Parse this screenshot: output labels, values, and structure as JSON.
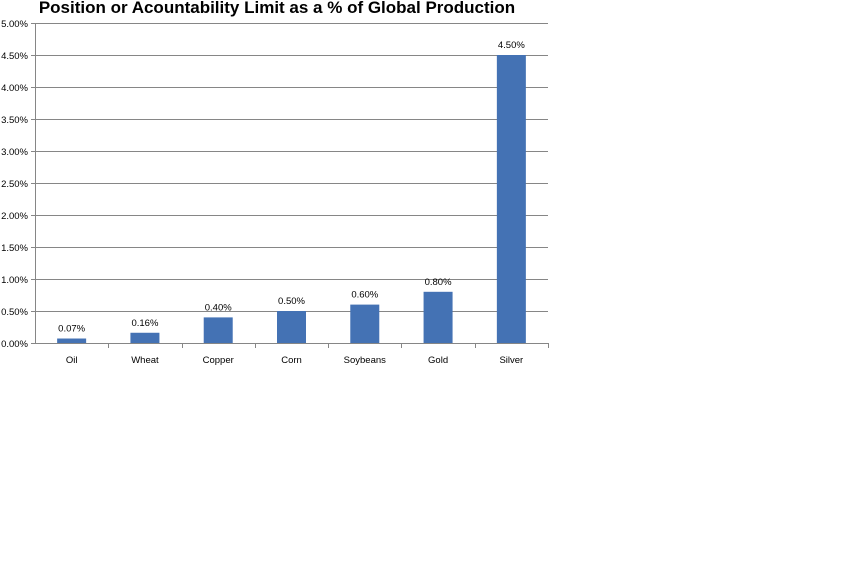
{
  "chart_data": {
    "type": "bar",
    "title": "Position or Acountability Limit as a % of Global Production",
    "xlabel": "",
    "ylabel": "",
    "categories": [
      "Oil",
      "Wheat",
      "Copper",
      "Corn",
      "Soybeans",
      "Gold",
      "Silver"
    ],
    "values": [
      0.07,
      0.16,
      0.4,
      0.5,
      0.6,
      0.8,
      4.5
    ],
    "data_labels": [
      "0.07%",
      "0.16%",
      "0.40%",
      "0.50%",
      "0.60%",
      "0.80%",
      "4.50%"
    ],
    "ylim": [
      0,
      5
    ],
    "yticks": [
      0,
      0.5,
      1.0,
      1.5,
      2.0,
      2.5,
      3.0,
      3.5,
      4.0,
      4.5,
      5.0
    ],
    "ytick_labels": [
      "0.00%",
      "0.50%",
      "1.00%",
      "1.50%",
      "2.00%",
      "2.50%",
      "3.00%",
      "3.50%",
      "4.00%",
      "4.50%",
      "5.00%"
    ],
    "grid": true,
    "legend": "none",
    "bar_color": "#4472B4"
  }
}
